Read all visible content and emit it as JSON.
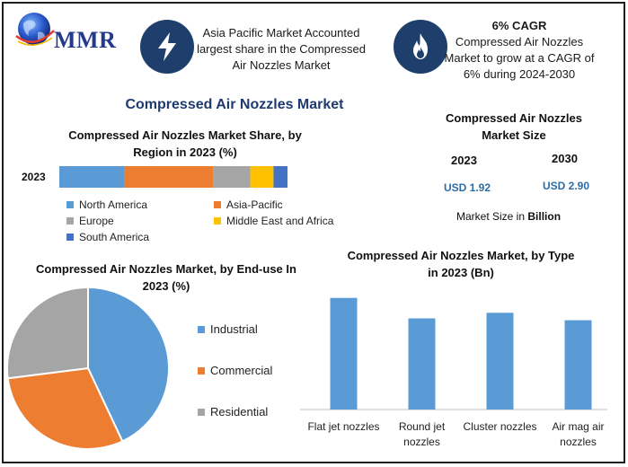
{
  "brand": {
    "logo_text": "MMR"
  },
  "info_left": {
    "icon": "lightning-icon",
    "text": "Asia Pacific Market Accounted largest share in the Compressed Air Nozzles Market"
  },
  "info_right": {
    "icon": "flame-icon",
    "title": "6% CAGR",
    "text": "Compressed Air Nozzles Market to grow at a CAGR of 6% during 2024-2030"
  },
  "main_title": "Compressed Air Nozzles Market",
  "market_size": {
    "title": "Compressed Air Nozzles Market Size",
    "year_a": "2023",
    "year_b": "2030",
    "value_a": "USD 1.92",
    "value_b": "USD 2.90",
    "note_prefix": "Market Size in ",
    "note_bold": "Billion"
  },
  "colors": {
    "accent_dark": "#1e3f6b",
    "north_america": "#5b9bd5",
    "asia_pacific": "#ed7d31",
    "europe": "#a5a5a5",
    "mea": "#ffc000",
    "south_america": "#4472c4",
    "bars": "#5b9bd5"
  },
  "chart_data": [
    {
      "type": "bar",
      "orientation": "horizontal-stacked",
      "title": "Compressed Air Nozzles Market Share, by Region in 2023 (%)",
      "categories": [
        "2023"
      ],
      "series": [
        {
          "name": "North America",
          "values": [
            28
          ]
        },
        {
          "name": "Asia-Pacific",
          "values": [
            38
          ]
        },
        {
          "name": "Europe",
          "values": [
            16
          ]
        },
        {
          "name": "Middle East and Africa",
          "values": [
            10
          ]
        },
        {
          "name": "South America",
          "values": [
            6
          ]
        }
      ],
      "legend": "bottom",
      "grid": false
    },
    {
      "type": "pie",
      "title": "Compressed Air Nozzles Market, by End-use In 2023 (%)",
      "labels": [
        "Industrial",
        "Commercial",
        "Residential"
      ],
      "values": [
        43,
        30,
        27
      ],
      "legend": "right"
    },
    {
      "type": "bar",
      "title": "Compressed Air Nozzles Market, by Type in 2023 (Bn)",
      "categories": [
        "Flat jet nozzles",
        "Round jet nozzles",
        "Cluster nozzles",
        "Air mag air nozzles"
      ],
      "values": [
        0.6,
        0.49,
        0.52,
        0.48
      ],
      "ylim": [
        0,
        0.7
      ],
      "grid": false
    }
  ]
}
